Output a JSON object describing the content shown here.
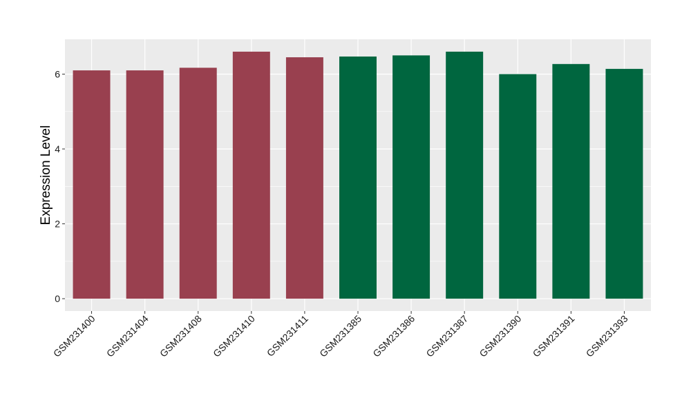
{
  "chart_data": {
    "type": "bar",
    "title": "",
    "xlabel": "",
    "ylabel": "Expression Level",
    "categories": [
      "GSM231400",
      "GSM231404",
      "GSM231408",
      "GSM231410",
      "GSM231411",
      "GSM231385",
      "GSM231386",
      "GSM231387",
      "GSM231390",
      "GSM231391",
      "GSM231393"
    ],
    "values": [
      6.1,
      6.1,
      6.17,
      6.6,
      6.45,
      6.47,
      6.5,
      6.6,
      6.0,
      6.27,
      6.14
    ],
    "bar_colors": [
      "#99404f",
      "#99404f",
      "#99404f",
      "#99404f",
      "#99404f",
      "#00663f",
      "#00663f",
      "#00663f",
      "#00663f",
      "#00663f",
      "#00663f"
    ],
    "ylim": [
      -0.33,
      6.93
    ],
    "yticks": [
      0,
      2,
      4,
      6
    ],
    "grid": true,
    "panel_background": "#ebebeb",
    "grid_color": "#ffffff"
  }
}
